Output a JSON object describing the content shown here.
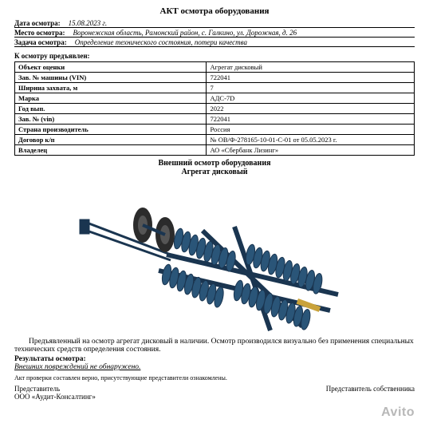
{
  "title": "АКТ осмотра оборудования",
  "header": {
    "date_label": "Дата осмотра:",
    "date_value": "15.08.2023 г.",
    "place_label": "Место осмотра:",
    "place_value": "Воронежская область, Рамонский район, с. Галкино, ул. Дорожная, д. 26",
    "task_label": "Задача осмотра:",
    "task_value": "Определение технического состояния, потери качества"
  },
  "presented_label": "К осмотру предъявлен:",
  "spec_rows": [
    {
      "k": "Объект оценки",
      "v": "Агрегат дисковый"
    },
    {
      "k": "Зав. № машины (VIN)",
      "v": "722041"
    },
    {
      "k": "Ширина захвата, м",
      "v": "7"
    },
    {
      "k": "Марка",
      "v": "АДС-7D"
    },
    {
      "k": "Год вып.",
      "v": "2022"
    },
    {
      "k": "Зав. № (vin)",
      "v": "722041"
    },
    {
      "k": "Страна производитель",
      "v": "Россия"
    },
    {
      "k": "Договор к/п",
      "v": "№ ОВ/Ф-278165-10-01-С-01 от 05.05.2023 г."
    },
    {
      "k": "Владелец",
      "v": "АО «Сбербанк Лизинг»"
    }
  ],
  "visual_section": "Внешний осмотр оборудования",
  "visual_caption": "Агрегат дисковый",
  "body_text": "Предъявленный на осмотр агрегат дисковый в наличии. Осмотр производился визуально без применения специальных технических средств определения состояния.",
  "results_label": "Результаты осмотра:",
  "results_value": "Внешних повреждений не обнаружено.",
  "footnote": "Акт проверки составлен верно, присутствующие представители ознакомлены.",
  "signatures": {
    "left_role": "Представитель",
    "left_org": "ООО «Аудит-Консалтинг»",
    "right_role": "Представитель собственника"
  },
  "watermark": "Avito",
  "colors": {
    "equipment_body": "#2a5578",
    "equipment_dark": "#1a3550",
    "tire": "#2b2b2b",
    "hydraulic": "#c9a23a",
    "background": "#ffffff",
    "text": "#000000",
    "watermark": "#b8b8b8"
  }
}
